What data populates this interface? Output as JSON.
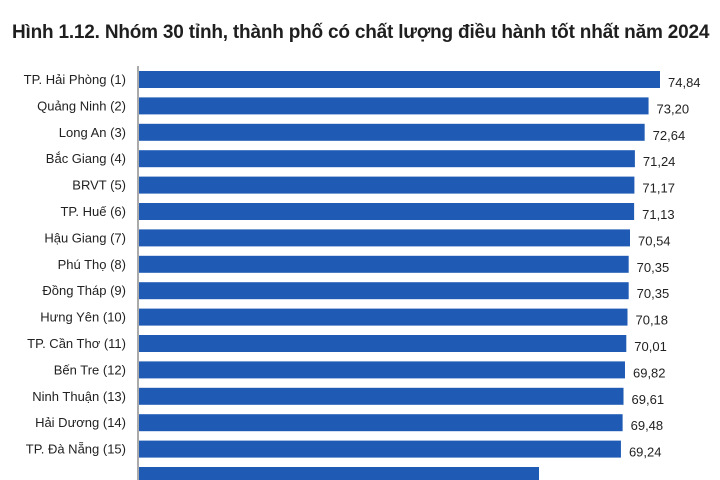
{
  "title": "Hình 1.12. Nhóm 30 tỉnh, thành phố có chất lượng điều hành tốt nhất năm 2024",
  "chart_data": {
    "type": "bar",
    "orientation": "horizontal",
    "title": "Hình 1.12. Nhóm 30 tỉnh, thành phố có chất lượng điều hành tốt nhất năm 2024",
    "categories": [
      "TP. Hải Phòng (1)",
      "Quảng Ninh (2)",
      "Long An (3)",
      "Bắc Giang (4)",
      "BRVT (5)",
      "TP. Huế (6)",
      "Hậu Giang (7)",
      "Phú Thọ (8)",
      "Đồng Tháp (9)",
      "Hưng Yên (10)",
      "TP. Cần Thơ (11)",
      "Bến Tre (12)",
      "Ninh Thuận (13)",
      "Hải Dương (14)",
      "TP. Đà Nẵng (15)"
    ],
    "values": [
      74.84,
      73.2,
      72.64,
      71.24,
      71.17,
      71.13,
      70.54,
      70.35,
      70.35,
      70.18,
      70.01,
      69.82,
      69.61,
      69.48,
      69.24
    ],
    "value_labels": [
      "74,84",
      "73,20",
      "72,64",
      "71,24",
      "71,17",
      "71,13",
      "70,54",
      "70,35",
      "70,35",
      "70,18",
      "70,01",
      "69,82",
      "69,61",
      "69,48",
      "69,24"
    ],
    "bar_color": "#1f5bb5",
    "xlim": [
      0,
      74.84
    ],
    "grid": false,
    "legend": "none"
  }
}
